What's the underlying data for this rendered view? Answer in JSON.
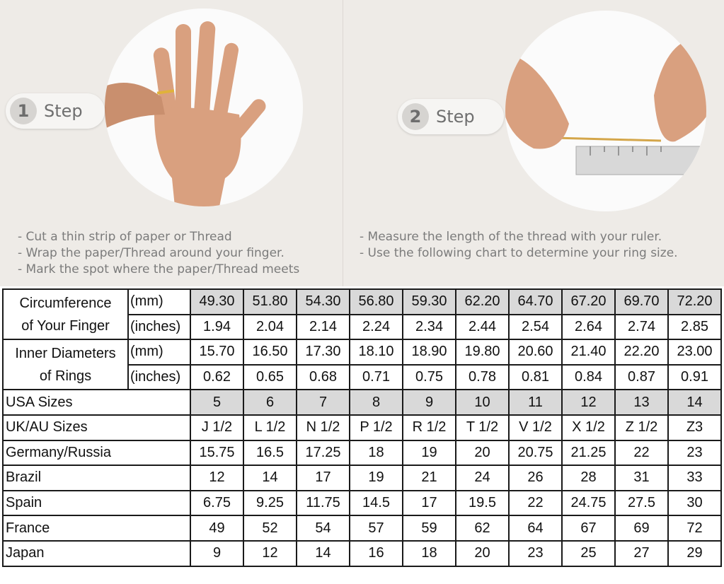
{
  "steps": [
    {
      "number": "1",
      "label": "Step",
      "instructions": [
        "- Cut a thin strip of paper or Thread",
        "- Wrap the paper/Thread around your finger.",
        "- Mark the spot where the paper/Thread meets"
      ]
    },
    {
      "number": "2",
      "label": "Step",
      "instructions": [
        "- Measure the length of the thread with your ruler.",
        "- Use the following chart to determine your ring size."
      ]
    }
  ],
  "colors": {
    "background": "#eeebe7",
    "highlight": "#d9d9d9",
    "border": "#1a1a1a",
    "step_badge": "#d6d4d1"
  },
  "icons": [
    "hand-with-ring-photo",
    "thread-and-ruler-photo"
  ],
  "table": {
    "circumference": {
      "label": [
        "Circumference",
        "of Your Finger"
      ],
      "units": [
        "(mm)",
        "(inches)"
      ],
      "mm": [
        "49.30",
        "51.80",
        "54.30",
        "56.80",
        "59.30",
        "62.20",
        "64.70",
        "67.20",
        "69.70",
        "72.20"
      ],
      "inches": [
        "1.94",
        "2.04",
        "2.14",
        "2.24",
        "2.34",
        "2.44",
        "2.54",
        "2.64",
        "2.74",
        "2.85"
      ]
    },
    "diameter": {
      "label": [
        "Inner Diameters",
        "of Rings"
      ],
      "units": [
        "(mm)",
        "(inches)"
      ],
      "mm": [
        "15.70",
        "16.50",
        "17.30",
        "18.10",
        "18.90",
        "19.80",
        "20.60",
        "21.40",
        "22.20",
        "23.00"
      ],
      "inches": [
        "0.62",
        "0.65",
        "0.68",
        "0.71",
        "0.75",
        "0.78",
        "0.81",
        "0.84",
        "0.87",
        "0.91"
      ]
    },
    "rows": [
      {
        "label": "USA Sizes",
        "values": [
          "5",
          "6",
          "7",
          "8",
          "9",
          "10",
          "11",
          "12",
          "13",
          "14"
        ]
      },
      {
        "label": "UK/AU Sizes",
        "values": [
          "J 1/2",
          "L 1/2",
          "N 1/2",
          "P 1/2",
          "R 1/2",
          "T 1/2",
          "V 1/2",
          "X 1/2",
          "Z 1/2",
          "Z3"
        ]
      },
      {
        "label": "Germany/Russia",
        "values": [
          "15.75",
          "16.5",
          "17.25",
          "18",
          "19",
          "20",
          "20.75",
          "21.25",
          "22",
          "23"
        ]
      },
      {
        "label": "Brazil",
        "values": [
          "12",
          "14",
          "17",
          "19",
          "21",
          "24",
          "26",
          "28",
          "31",
          "33"
        ]
      },
      {
        "label": "Spain",
        "values": [
          "6.75",
          "9.25",
          "11.75",
          "14.5",
          "17",
          "19.5",
          "22",
          "24.75",
          "27.5",
          "30"
        ]
      },
      {
        "label": "France",
        "values": [
          "49",
          "52",
          "54",
          "57",
          "59",
          "62",
          "64",
          "67",
          "69",
          "72"
        ]
      },
      {
        "label": "Japan",
        "values": [
          "9",
          "12",
          "14",
          "16",
          "18",
          "20",
          "23",
          "25",
          "27",
          "29"
        ]
      }
    ]
  }
}
